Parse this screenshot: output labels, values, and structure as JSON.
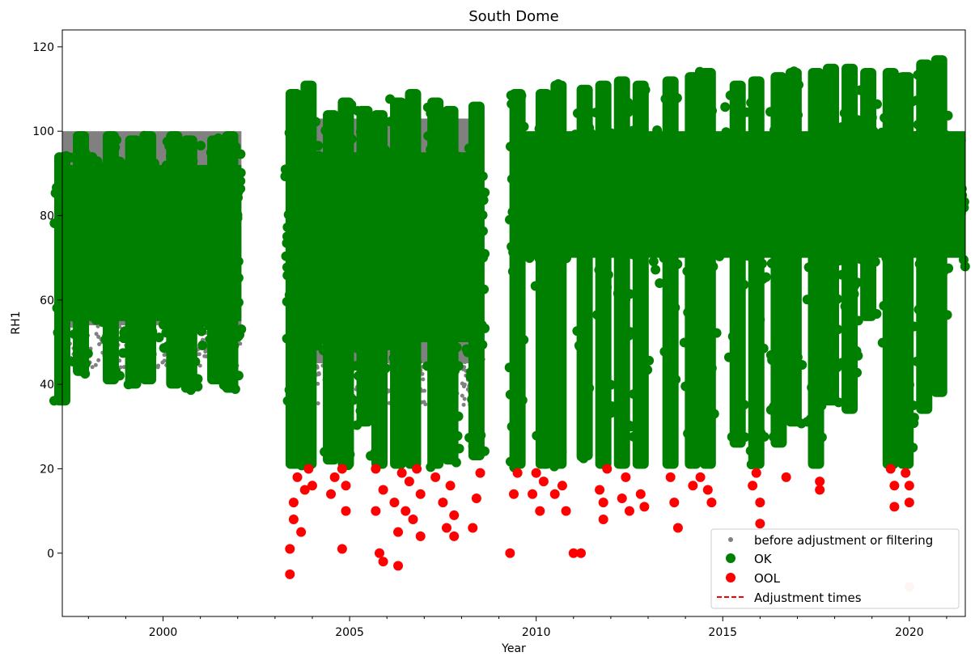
{
  "chart_data": {
    "type": "scatter",
    "title": "South Dome",
    "xlabel": "Year",
    "ylabel": "RH1",
    "xlim": [
      1997.3,
      2021.5
    ],
    "ylim": [
      -15,
      124
    ],
    "xticks": [
      2000,
      2005,
      2010,
      2015,
      2020
    ],
    "yticks": [
      0,
      20,
      40,
      60,
      80,
      100,
      120
    ],
    "legend_position": "lower right",
    "series": [
      {
        "name": "before adjustment or filtering",
        "color": "#808080",
        "marker": "small-dot",
        "bands": [
          {
            "x": [
              1997.3,
              2002.1
            ],
            "y": [
              54,
              100
            ]
          },
          {
            "x": [
              2003.6,
              2008.6
            ],
            "y": [
              45,
              103
            ]
          }
        ]
      },
      {
        "name": "OK",
        "color": "#008000",
        "marker": "dot",
        "bands": [
          {
            "x": [
              1997.3,
              2002.1
            ],
            "y": [
              55,
              92
            ]
          },
          {
            "x": [
              2003.3,
              2008.6
            ],
            "y": [
              50,
              95
            ]
          },
          {
            "x": [
              2009.3,
              2021.5
            ],
            "y": [
              70,
              100
            ]
          }
        ],
        "spikes": [
          [
            1997.3,
            35,
            95
          ],
          [
            1997.8,
            42,
            100
          ],
          [
            1998.6,
            40,
            100
          ],
          [
            1999.2,
            39,
            99
          ],
          [
            1999.6,
            40,
            100
          ],
          [
            2000.3,
            39,
            100
          ],
          [
            2000.7,
            38,
            99
          ],
          [
            2001.4,
            40,
            99
          ],
          [
            2001.8,
            38,
            100
          ],
          [
            2003.5,
            20,
            110
          ],
          [
            2003.9,
            20,
            112
          ],
          [
            2004.5,
            21,
            105
          ],
          [
            2004.9,
            20,
            108
          ],
          [
            2005.4,
            30,
            106
          ],
          [
            2005.8,
            20,
            105
          ],
          [
            2006.3,
            20,
            108
          ],
          [
            2006.7,
            20,
            110
          ],
          [
            2007.3,
            20,
            108
          ],
          [
            2007.7,
            21,
            106
          ],
          [
            2008.4,
            22,
            107
          ],
          [
            2009.5,
            20,
            110
          ],
          [
            2010.2,
            20,
            110
          ],
          [
            2010.6,
            20,
            112
          ],
          [
            2011.3,
            22,
            111
          ],
          [
            2011.8,
            20,
            112
          ],
          [
            2012.3,
            20,
            113
          ],
          [
            2012.8,
            20,
            112
          ],
          [
            2013.6,
            20,
            113
          ],
          [
            2014.2,
            20,
            114
          ],
          [
            2014.6,
            20,
            115
          ],
          [
            2015.4,
            25,
            112
          ],
          [
            2015.9,
            20,
            113
          ],
          [
            2016.5,
            25,
            114
          ],
          [
            2016.9,
            30,
            115
          ],
          [
            2017.5,
            20,
            115
          ],
          [
            2017.9,
            35,
            116
          ],
          [
            2018.4,
            33,
            116
          ],
          [
            2018.9,
            55,
            115
          ],
          [
            2019.5,
            20,
            115
          ],
          [
            2019.9,
            20,
            114
          ],
          [
            2020.4,
            33,
            117
          ],
          [
            2020.8,
            37,
            118
          ],
          [
            2021.2,
            80,
            99
          ]
        ]
      },
      {
        "name": "OOL",
        "color": "#ff0000",
        "marker": "dot",
        "points": [
          [
            2003.4,
            -5
          ],
          [
            2003.4,
            1
          ],
          [
            2003.5,
            8
          ],
          [
            2003.5,
            12
          ],
          [
            2003.6,
            18
          ],
          [
            2003.7,
            5
          ],
          [
            2003.8,
            15
          ],
          [
            2003.9,
            20
          ],
          [
            2004.0,
            16
          ],
          [
            2004.5,
            14
          ],
          [
            2004.6,
            18
          ],
          [
            2004.8,
            20
          ],
          [
            2004.8,
            1
          ],
          [
            2004.9,
            10
          ],
          [
            2004.9,
            16
          ],
          [
            2005.7,
            20
          ],
          [
            2005.7,
            10
          ],
          [
            2005.8,
            0
          ],
          [
            2005.9,
            15
          ],
          [
            2005.9,
            -2
          ],
          [
            2006.2,
            12
          ],
          [
            2006.3,
            5
          ],
          [
            2006.3,
            -3
          ],
          [
            2006.4,
            19
          ],
          [
            2006.5,
            10
          ],
          [
            2006.6,
            17
          ],
          [
            2006.7,
            8
          ],
          [
            2006.8,
            20
          ],
          [
            2006.9,
            4
          ],
          [
            2006.9,
            14
          ],
          [
            2007.3,
            18
          ],
          [
            2007.5,
            12
          ],
          [
            2007.6,
            6
          ],
          [
            2007.7,
            16
          ],
          [
            2007.8,
            9
          ],
          [
            2007.8,
            4
          ],
          [
            2008.3,
            6
          ],
          [
            2008.4,
            13
          ],
          [
            2008.5,
            19
          ],
          [
            2009.3,
            0
          ],
          [
            2009.4,
            14
          ],
          [
            2009.5,
            19
          ],
          [
            2009.9,
            14
          ],
          [
            2010.0,
            19
          ],
          [
            2010.1,
            10
          ],
          [
            2010.2,
            17
          ],
          [
            2010.5,
            14
          ],
          [
            2010.7,
            16
          ],
          [
            2010.8,
            10
          ],
          [
            2011.0,
            0
          ],
          [
            2011.2,
            0
          ],
          [
            2011.7,
            15
          ],
          [
            2011.8,
            8
          ],
          [
            2011.8,
            12
          ],
          [
            2011.9,
            20
          ],
          [
            2012.3,
            13
          ],
          [
            2012.4,
            18
          ],
          [
            2012.5,
            10
          ],
          [
            2012.8,
            14
          ],
          [
            2012.9,
            11
          ],
          [
            2013.6,
            18
          ],
          [
            2013.7,
            12
          ],
          [
            2013.8,
            6
          ],
          [
            2014.2,
            16
          ],
          [
            2014.4,
            18
          ],
          [
            2014.6,
            15
          ],
          [
            2014.7,
            12
          ],
          [
            2015.8,
            16
          ],
          [
            2015.9,
            19
          ],
          [
            2016.0,
            12
          ],
          [
            2016.0,
            7
          ],
          [
            2016.7,
            18
          ],
          [
            2017.6,
            17
          ],
          [
            2017.6,
            15
          ],
          [
            2019.5,
            20
          ],
          [
            2019.6,
            16
          ],
          [
            2019.6,
            11
          ],
          [
            2019.9,
            19
          ],
          [
            2020.0,
            16
          ],
          [
            2020.0,
            12
          ],
          [
            2020.0,
            -8
          ]
        ]
      },
      {
        "name": "Adjustment times",
        "color": "#ff0000",
        "style": "dashed-line",
        "x": []
      }
    ]
  }
}
